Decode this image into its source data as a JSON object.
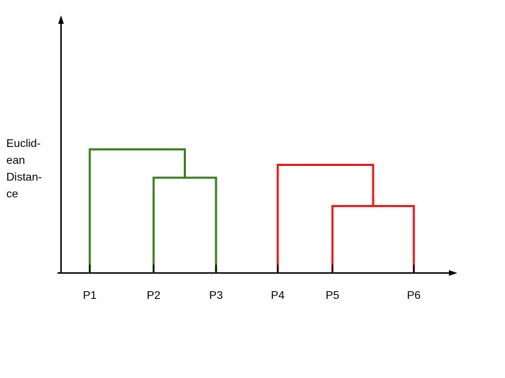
{
  "ylabel_lines": [
    "Euclid-",
    "ean",
    "Distan-",
    "ce"
  ],
  "points": [
    {
      "label": "P1"
    },
    {
      "label": "P2"
    },
    {
      "label": "P3"
    },
    {
      "label": "P4"
    },
    {
      "label": "P5"
    },
    {
      "label": "P6"
    }
  ],
  "colors": {
    "axis": "#000000",
    "cluster_a": "#3a7d1e",
    "cluster_b": "#e01b1b"
  },
  "merges": [
    {
      "left": [
        "P2"
      ],
      "right": [
        "P3"
      ],
      "height": 0.37,
      "color": "cluster_a"
    },
    {
      "left": [
        "P1"
      ],
      "right": [
        "P2",
        "P3"
      ],
      "height": 0.48,
      "color": "cluster_a"
    },
    {
      "left": [
        "P5"
      ],
      "right": [
        "P6"
      ],
      "height": 0.26,
      "color": "cluster_b"
    },
    {
      "left": [
        "P4"
      ],
      "right": [
        "P5",
        "P6"
      ],
      "height": 0.42,
      "color": "cluster_b"
    }
  ]
}
